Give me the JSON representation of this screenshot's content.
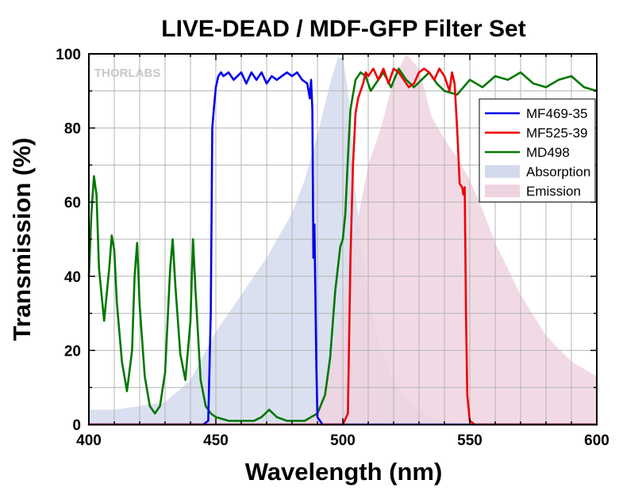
{
  "chart_data": {
    "type": "line",
    "title": "LIVE-DEAD / MDF-GFP Filter Set",
    "xlabel": "Wavelength (nm)",
    "ylabel": "Transmission (%)",
    "xlim": [
      400,
      600
    ],
    "ylim": [
      0,
      100
    ],
    "xticks": [
      400,
      450,
      500,
      550,
      600
    ],
    "yticks": [
      0,
      20,
      40,
      60,
      80,
      100
    ],
    "grid": true,
    "legend_position": "top-right",
    "watermark": "THORLABS",
    "series": [
      {
        "name": "MF469-35",
        "kind": "line",
        "color": "#0000ee",
        "x": [
          400,
          445,
          447,
          448,
          448.6,
          449.2,
          450,
          451,
          452,
          453,
          455,
          457,
          460,
          462,
          464,
          466,
          468,
          470,
          472,
          474,
          476,
          478,
          480,
          482,
          484,
          486,
          487,
          487.5,
          488,
          488.4,
          488.8,
          489.2,
          489.6,
          490,
          492,
          600
        ],
        "y": [
          0,
          0,
          1,
          30,
          80,
          85,
          91,
          94,
          95,
          94,
          95,
          93,
          95,
          92,
          95,
          93,
          95,
          92,
          94,
          93,
          94,
          95,
          94,
          95,
          93,
          92,
          88,
          93,
          85,
          45,
          54,
          35,
          15,
          2,
          0,
          0
        ]
      },
      {
        "name": "MF525-39",
        "kind": "line",
        "color": "#ee0000",
        "x": [
          400,
          500,
          502,
          503,
          504,
          505,
          506,
          507,
          508,
          509,
          510,
          512,
          514,
          516,
          518,
          520,
          522,
          524,
          526,
          528,
          530,
          532,
          534,
          536,
          538,
          540,
          542,
          543,
          544,
          545,
          546,
          547,
          547.5,
          548,
          548.5,
          549,
          550,
          552,
          600
        ],
        "y": [
          0,
          0,
          3,
          45,
          70,
          84,
          88,
          90,
          92,
          95,
          94,
          96,
          93,
          96,
          92,
          96,
          95,
          93,
          91,
          92,
          95,
          96,
          95,
          93,
          96,
          94,
          90,
          95,
          92,
          80,
          65,
          64,
          62,
          64,
          30,
          8,
          1,
          0,
          0
        ]
      },
      {
        "name": "MD498",
        "kind": "line",
        "color": "#007700",
        "x": [
          400,
          401,
          402,
          403,
          404,
          406,
          408,
          409,
          410,
          411,
          413,
          415,
          417,
          418,
          419,
          420,
          422,
          424,
          426,
          428,
          430,
          432,
          433,
          434,
          436,
          438,
          440,
          441,
          442,
          444,
          446,
          448,
          450,
          455,
          460,
          465,
          468,
          471,
          474,
          478,
          485,
          490,
          493,
          495,
          497,
          499,
          500,
          501,
          502,
          503,
          505,
          507,
          509,
          511,
          513,
          516,
          519,
          522,
          525,
          528,
          531,
          534,
          537,
          540,
          545,
          550,
          555,
          560,
          565,
          570,
          575,
          580,
          585,
          590,
          595,
          600
        ],
        "y": [
          40,
          57,
          67,
          62,
          42,
          28,
          42,
          51,
          47,
          33,
          17,
          9,
          20,
          40,
          49,
          32,
          13,
          5,
          3,
          5,
          14,
          42,
          50,
          38,
          19,
          12,
          28,
          50,
          36,
          12,
          5,
          3,
          2,
          1,
          1,
          1,
          2,
          4,
          2,
          1,
          1,
          3,
          8,
          18,
          36,
          48,
          50,
          57,
          72,
          85,
          93,
          95,
          94,
          90,
          92,
          95,
          91,
          96,
          93,
          91,
          93,
          95,
          92,
          90,
          89,
          93,
          91,
          94,
          93,
          95,
          92,
          91,
          93,
          94,
          91,
          90
        ]
      },
      {
        "name": "Absorption",
        "kind": "area",
        "color": "#d3daec",
        "x": [
          400,
          410,
          420,
          430,
          440,
          450,
          460,
          470,
          480,
          485,
          490,
          495,
          498,
          500,
          502,
          505,
          510,
          515,
          520,
          525,
          530,
          535,
          540,
          545,
          550,
          600
        ],
        "y": [
          4,
          4,
          5,
          6,
          12,
          25,
          35,
          45,
          57,
          66,
          78,
          92,
          99,
          99,
          90,
          62,
          35,
          20,
          12,
          7,
          4,
          2,
          1,
          0.5,
          0,
          0
        ]
      },
      {
        "name": "Emission",
        "kind": "area",
        "color": "#eed4e0",
        "x": [
          485,
          490,
          495,
          500,
          505,
          510,
          515,
          520,
          525,
          530,
          535,
          540,
          545,
          550,
          555,
          560,
          570,
          580,
          590,
          600
        ],
        "y": [
          0,
          5,
          15,
          32,
          52,
          70,
          80,
          93,
          100,
          96,
          83,
          77,
          72,
          66,
          58,
          49,
          35,
          24,
          17,
          13
        ]
      }
    ]
  }
}
